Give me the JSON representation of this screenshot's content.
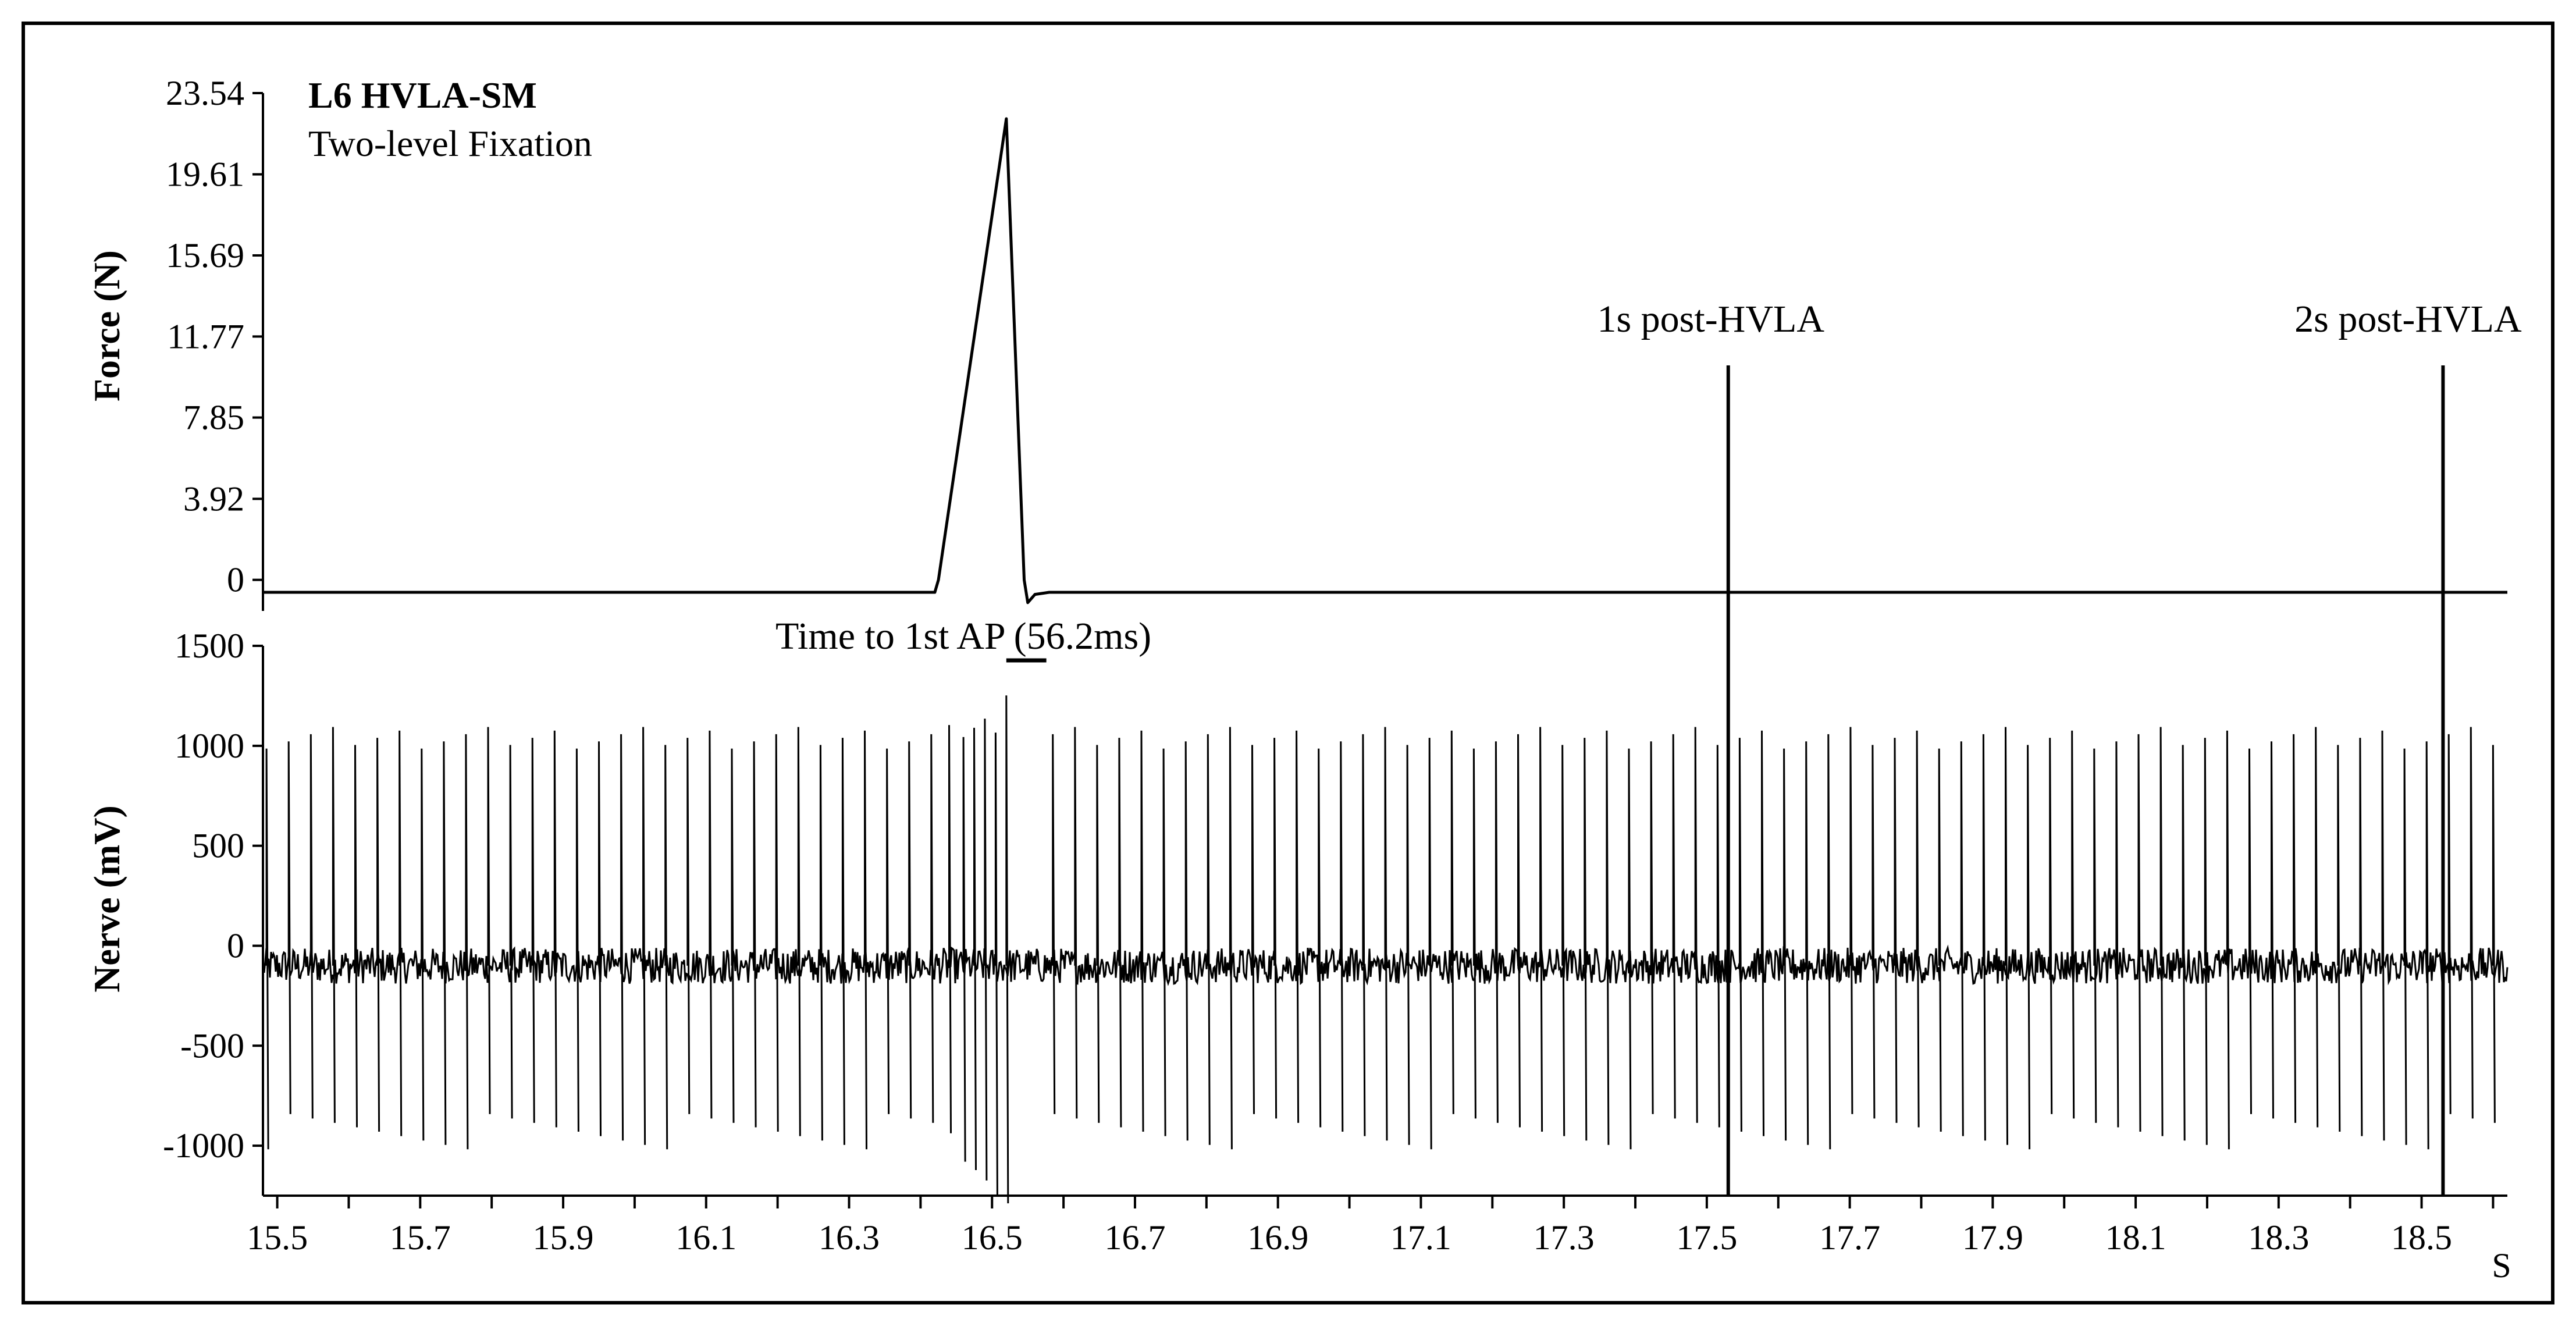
{
  "chart_data": {
    "type": "line",
    "title": "L6 HVLA-SM",
    "subtitle": "Two-level Fixation",
    "x_axis": {
      "unit_label": "S",
      "range": [
        15.48,
        18.62
      ],
      "ticks": [
        "15.5",
        "15.7",
        "15.9",
        "16.1",
        "16.3",
        "16.5",
        "16.7",
        "16.9",
        "17.1",
        "17.3",
        "17.5",
        "17.7",
        "17.9",
        "18.1",
        "18.3",
        "18.5"
      ]
    },
    "force_panel": {
      "ylabel": "Force (N)",
      "ylim": [
        -1.5,
        23.54
      ],
      "ticks": [
        "0",
        "3.92",
        "7.85",
        "11.77",
        "15.69",
        "19.61",
        "23.54"
      ],
      "series": [
        {
          "x": [
            15.48,
            16.42,
            16.425,
            16.52,
            16.545,
            16.55,
            16.56,
            16.58,
            18.62
          ],
          "y": [
            -0.6,
            -0.6,
            0.0,
            22.3,
            0.0,
            -1.1,
            -0.7,
            -0.6,
            -0.6
          ]
        }
      ]
    },
    "nerve_panel": {
      "ylabel": "Nerve (mV)",
      "ylim": [
        -1250,
        1500
      ],
      "ticks": [
        "-1000",
        "-500",
        "0",
        "500",
        "1000",
        "1500"
      ],
      "baseline": -100,
      "noise_amplitude": 90,
      "spike_interval_s": 0.031,
      "spike_peak_mV": 1040,
      "spike_trough_mV": -930,
      "burst": {
        "x": [
          16.44,
          16.46,
          16.475,
          16.49,
          16.505,
          16.52
        ],
        "peak": [
          1050,
          1080,
          1090,
          1100,
          1120,
          1270
        ],
        "trough": [
          -960,
          -1080,
          -1100,
          -1130,
          -1180,
          -1200
        ]
      }
    },
    "annotations": [
      {
        "text": "Time to 1st AP (56.2ms)",
        "x_start": 16.52,
        "x_end": 16.576
      },
      {
        "text": "1s post-HVLA",
        "x": 17.53
      },
      {
        "text": "2s post-HVLA",
        "x": 18.53
      }
    ]
  }
}
